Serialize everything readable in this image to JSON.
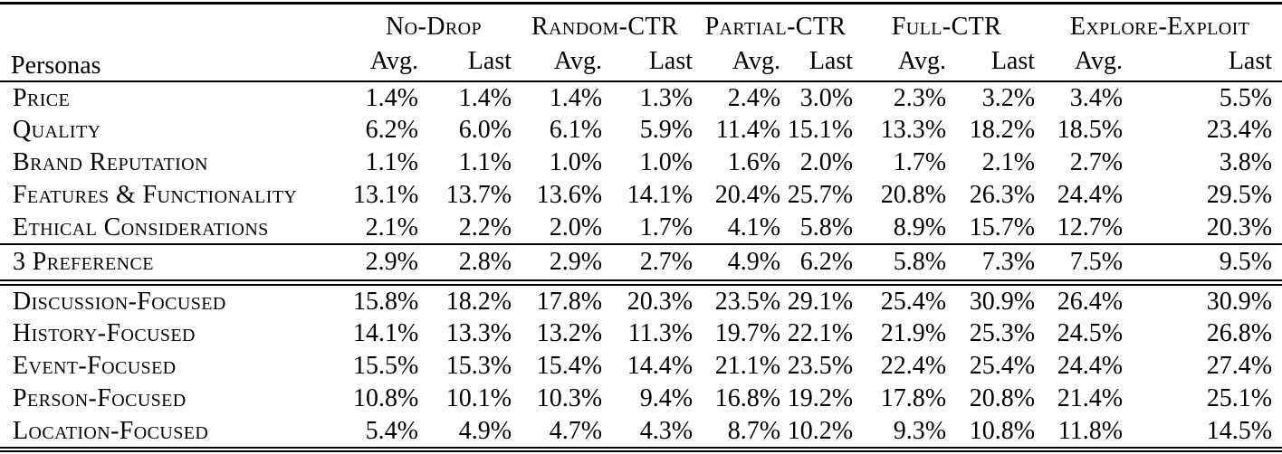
{
  "table": {
    "row_header": "Personas",
    "groups": [
      {
        "label": "No-Drop",
        "sub": [
          "Avg.",
          "Last"
        ]
      },
      {
        "label": "Random-CTR",
        "sub": [
          "Avg.",
          "Last"
        ]
      },
      {
        "label": "Partial-CTR",
        "sub": [
          "Avg.",
          "Last"
        ]
      },
      {
        "label": "Full-CTR",
        "sub": [
          "Avg.",
          "Last"
        ]
      },
      {
        "label": "Explore-Exploit",
        "sub": [
          "Avg.",
          "Last"
        ]
      }
    ],
    "sections": [
      {
        "rows": [
          {
            "label": "Price",
            "values": [
              "1.4%",
              "1.4%",
              "1.4%",
              "1.3%",
              "2.4%",
              "3.0%",
              "2.3%",
              "3.2%",
              "3.4%",
              "5.5%"
            ]
          },
          {
            "label": "Quality",
            "values": [
              "6.2%",
              "6.0%",
              "6.1%",
              "5.9%",
              "11.4%",
              "15.1%",
              "13.3%",
              "18.2%",
              "18.5%",
              "23.4%"
            ]
          },
          {
            "label": "Brand Reputation",
            "values": [
              "1.1%",
              "1.1%",
              "1.0%",
              "1.0%",
              "1.6%",
              "2.0%",
              "1.7%",
              "2.1%",
              "2.7%",
              "3.8%"
            ]
          },
          {
            "label": "Features & Functionality",
            "values": [
              "13.1%",
              "13.7%",
              "13.6%",
              "14.1%",
              "20.4%",
              "25.7%",
              "20.8%",
              "26.3%",
              "24.4%",
              "29.5%"
            ]
          },
          {
            "label": "Ethical Considerations",
            "values": [
              "2.1%",
              "2.2%",
              "2.0%",
              "1.7%",
              "4.1%",
              "5.8%",
              "8.9%",
              "15.7%",
              "12.7%",
              "20.3%"
            ]
          }
        ]
      },
      {
        "rows": [
          {
            "label": "3 Preference",
            "values": [
              "2.9%",
              "2.8%",
              "2.9%",
              "2.7%",
              "4.9%",
              "6.2%",
              "5.8%",
              "7.3%",
              "7.5%",
              "9.5%"
            ]
          }
        ]
      },
      {
        "rows": [
          {
            "label": "Discussion-Focused",
            "values": [
              "15.8%",
              "18.2%",
              "17.8%",
              "20.3%",
              "23.5%",
              "29.1%",
              "25.4%",
              "30.9%",
              "26.4%",
              "30.9%"
            ]
          },
          {
            "label": "History-Focused",
            "values": [
              "14.1%",
              "13.3%",
              "13.2%",
              "11.3%",
              "19.7%",
              "22.1%",
              "21.9%",
              "25.3%",
              "24.5%",
              "26.8%"
            ]
          },
          {
            "label": "Event-Focused",
            "values": [
              "15.5%",
              "15.3%",
              "15.4%",
              "14.4%",
              "21.1%",
              "23.5%",
              "22.4%",
              "25.4%",
              "24.4%",
              "27.4%"
            ]
          },
          {
            "label": "Person-Focused",
            "values": [
              "10.8%",
              "10.1%",
              "10.3%",
              "9.4%",
              "16.8%",
              "19.2%",
              "17.8%",
              "20.8%",
              "21.4%",
              "25.1%"
            ]
          },
          {
            "label": "Location-Focused",
            "values": [
              "5.4%",
              "4.9%",
              "4.7%",
              "4.3%",
              "8.7%",
              "10.2%",
              "9.3%",
              "10.8%",
              "11.8%",
              "14.5%"
            ]
          }
        ]
      }
    ]
  },
  "colors": {
    "text": "#000000",
    "rule": "#000000",
    "background": "#ffffff"
  }
}
